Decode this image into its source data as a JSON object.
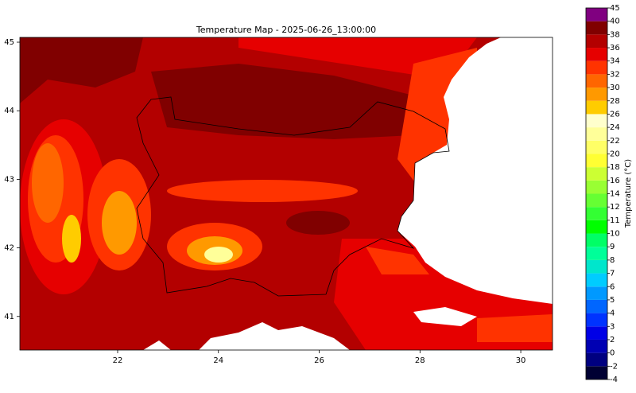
{
  "title": "Temperature Map - 2025-06-26_13:00:00",
  "map": {
    "xlim": [
      20.06,
      30.63
    ],
    "ylim": [
      40.51,
      45.07
    ],
    "xticks": [
      22,
      24,
      26,
      28,
      30
    ],
    "yticks": [
      41,
      42,
      43,
      44,
      45
    ]
  },
  "colorbar": {
    "label": "Temperature (°C)",
    "levels": [
      -4,
      -2,
      0,
      2,
      3,
      4,
      5,
      6,
      7,
      8,
      9,
      10,
      11,
      12,
      14,
      16,
      18,
      20,
      22,
      24,
      26,
      28,
      30,
      32,
      34,
      36,
      38,
      40,
      45
    ],
    "colors": [
      "#000033",
      "#000080",
      "#0000b3",
      "#0000e6",
      "#0033ff",
      "#0066ff",
      "#0099ff",
      "#00ccff",
      "#00e6cc",
      "#00ff99",
      "#00ff66",
      "#00ff00",
      "#33ff33",
      "#66ff33",
      "#99ff33",
      "#ccff33",
      "#ffff33",
      "#ffff66",
      "#ffff99",
      "#ffffcc",
      "#ffcc00",
      "#ff9900",
      "#ff6600",
      "#ff3300",
      "#e60000",
      "#b30000",
      "#800000",
      "#800080"
    ]
  }
}
